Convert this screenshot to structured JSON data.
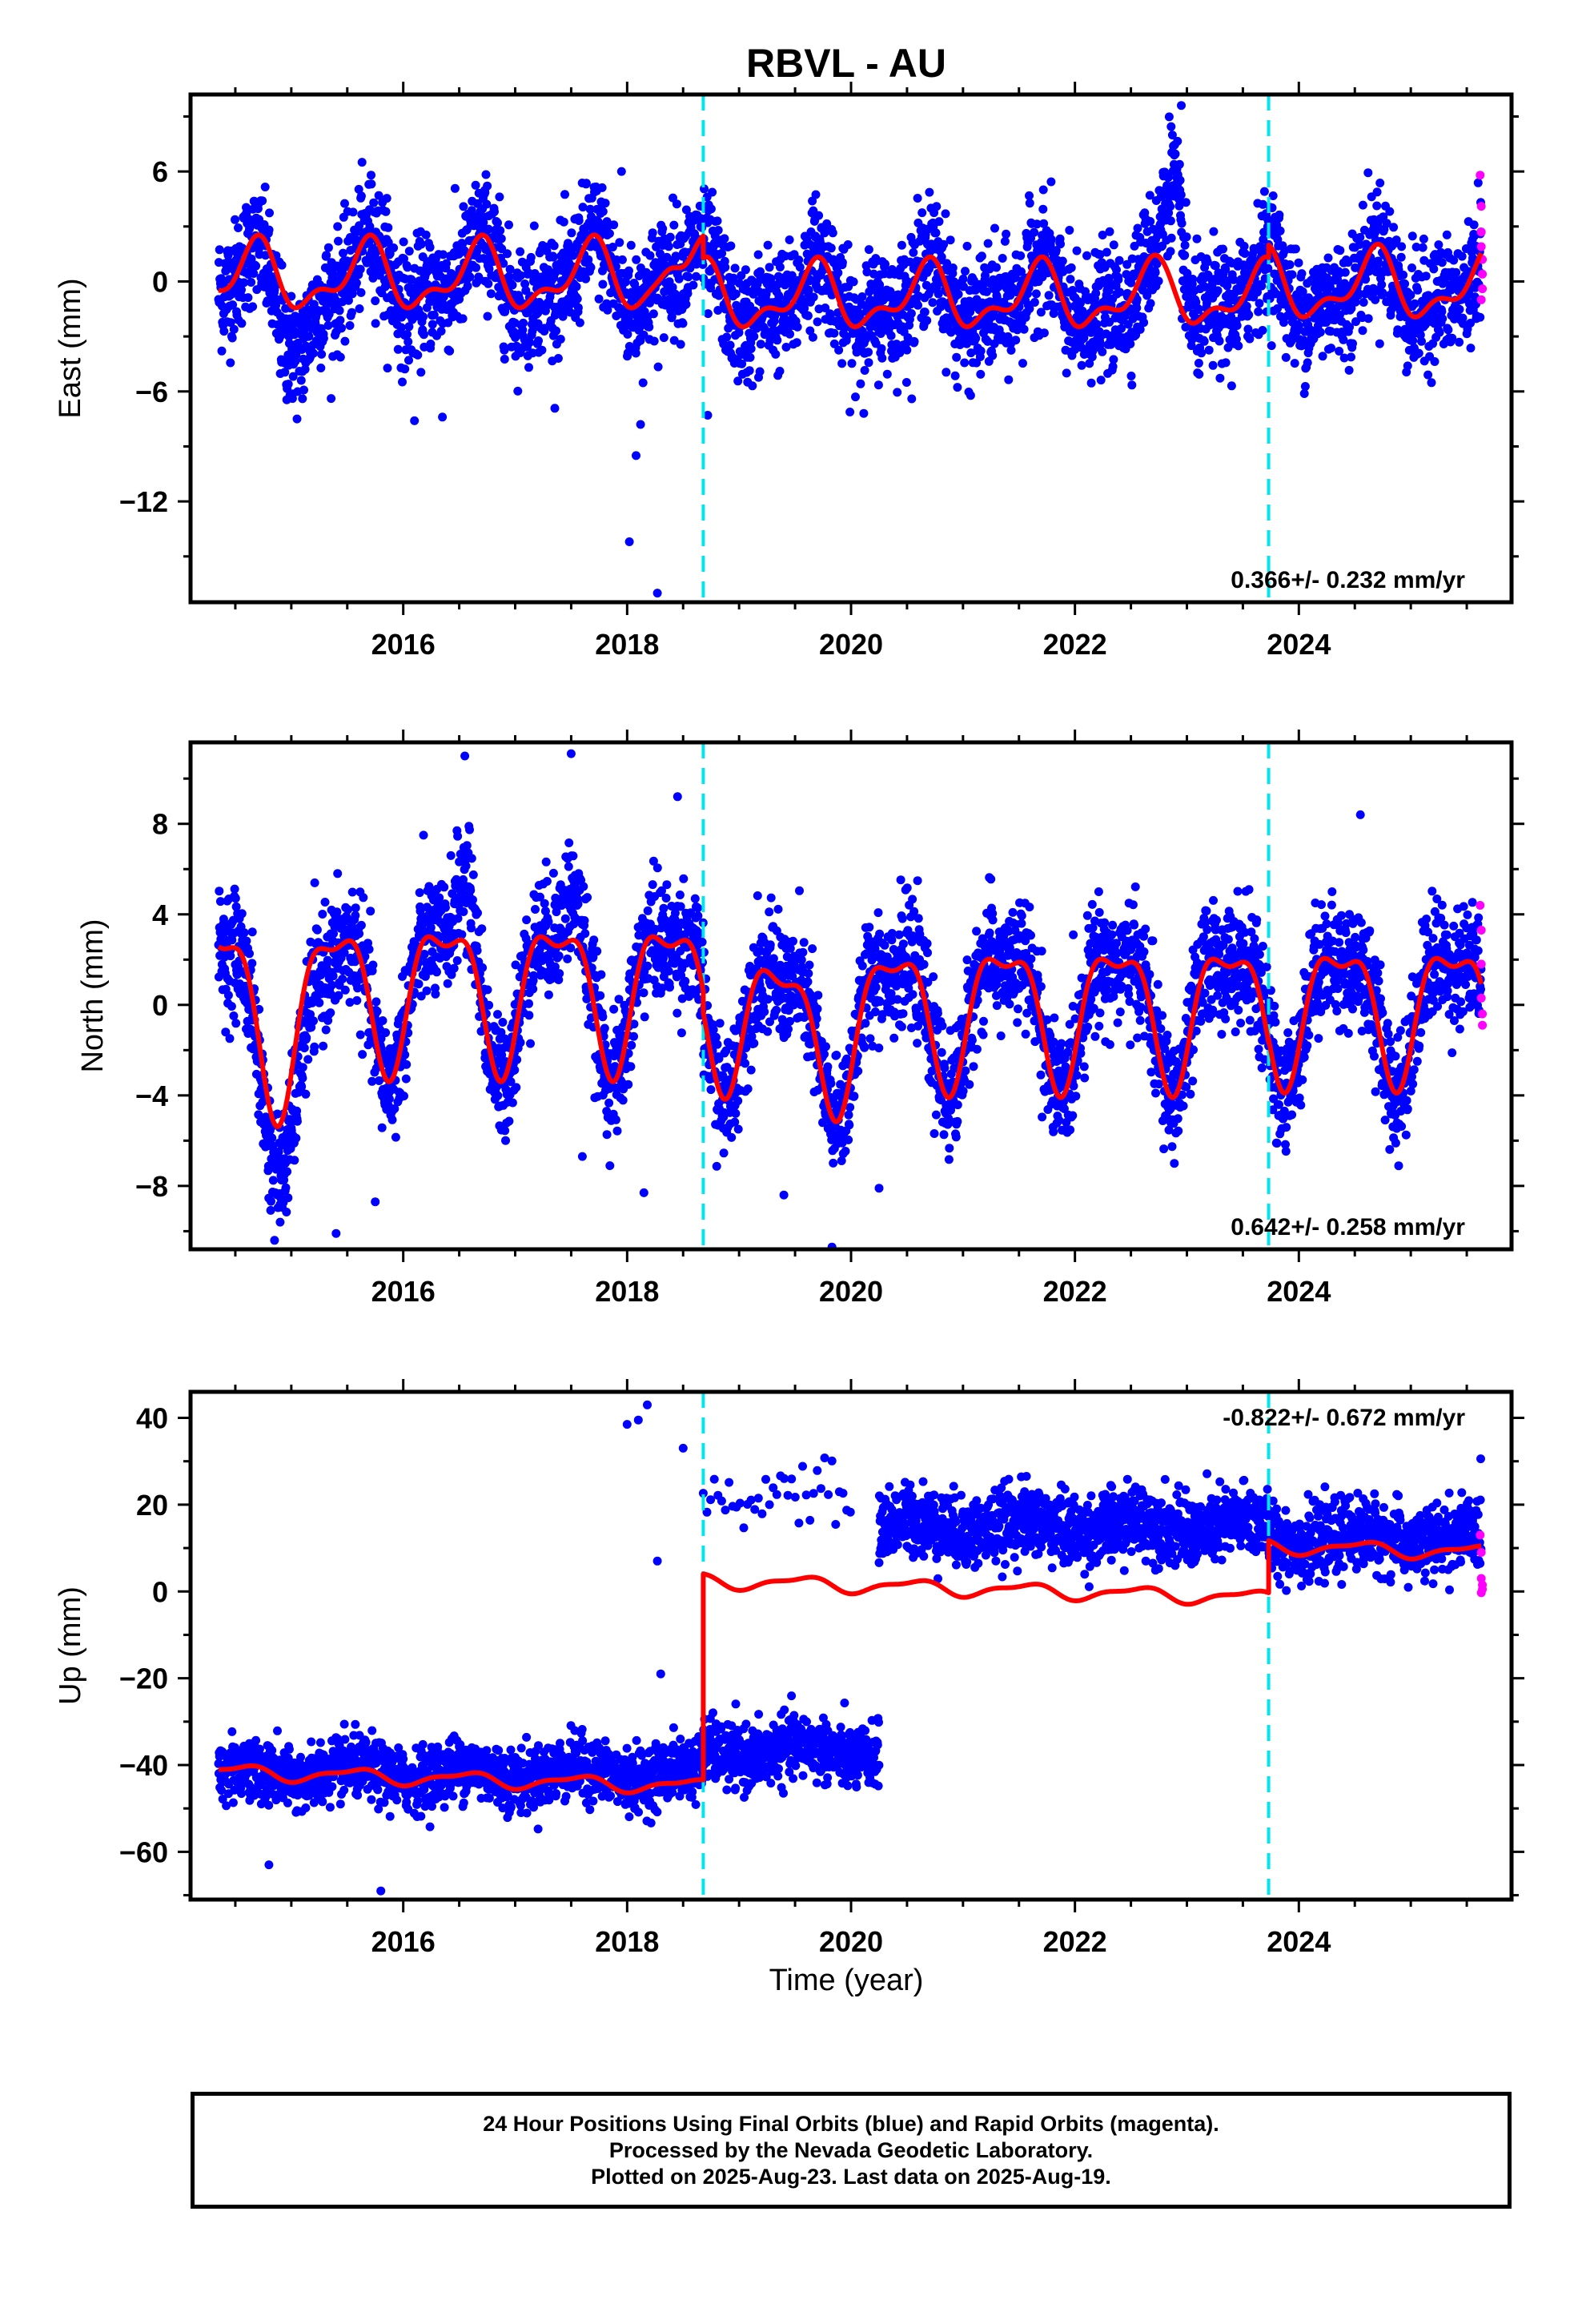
{
  "title": "RBVL - AU",
  "x_axis_label": "Time (year)",
  "colors": {
    "final": "#0000ff",
    "rapid": "#ff00ff",
    "model": "#ff0000",
    "offset": "#00e5ee"
  },
  "footer": {
    "line1": "24 Hour Positions Using Final Orbits (blue) and Rapid Orbits (magenta).",
    "line2": "Processed by the Nevada Geodetic Laboratory.",
    "line3": "Plotted on 2025-Aug-23. Last data on 2025-Aug-19."
  },
  "chart_data": [
    {
      "type": "scatter",
      "component": "East",
      "ylabel": "East (mm)",
      "xlim": [
        2014.1,
        2025.9
      ],
      "ylim": [
        -17.5,
        10.2
      ],
      "yticks": [
        6,
        0,
        -6,
        -12
      ],
      "xticks": [
        2016,
        2018,
        2020,
        2022,
        2024
      ],
      "grid": false,
      "rate_label": "0.366+/- 0.232 mm/yr",
      "rate_position": "bottom-right",
      "offsets": [
        2018.68,
        2023.73
      ],
      "data_start": 2014.35,
      "data_end": 2025.63,
      "model": {
        "name": "model",
        "segments": [
          {
            "start": 2014.35,
            "end": 2018.68,
            "level": 0.2,
            "amp1": 1.6,
            "ph1": 0.42,
            "amp2": 0.8,
            "ph2": 0.1
          },
          {
            "start": 2018.68,
            "end": 2023.73,
            "level": -0.9,
            "amp1": 1.5,
            "ph1": 0.42,
            "amp2": 0.8,
            "ph2": 0.1
          },
          {
            "start": 2023.73,
            "end": 2025.63,
            "level": -0.3,
            "amp1": 1.6,
            "ph1": 0.42,
            "amp2": 0.8,
            "ph2": 0.1
          }
        ],
        "features": [
          {
            "center": 2018.4,
            "width": 0.12,
            "amp": 1.2
          },
          {
            "center": 2022.9,
            "width": 0.15,
            "amp": 0.5
          }
        ]
      },
      "scatter_features": [
        {
          "center": 2022.88,
          "width": 0.1,
          "amp": 6.0
        },
        {
          "center": 2015.0,
          "width": 0.25,
          "amp": -2.5
        }
      ],
      "noise_sd": 1.6,
      "outliers": [
        {
          "x": 2018.02,
          "y": -14.2
        },
        {
          "x": 2018.27,
          "y": -17.0
        },
        {
          "x": 2018.08,
          "y": -9.5
        },
        {
          "x": 2018.12,
          "y": -7.8
        },
        {
          "x": 2016.1,
          "y": -7.6
        },
        {
          "x": 2016.35,
          "y": -7.4
        },
        {
          "x": 2018.72,
          "y": -7.3
        },
        {
          "x": 2022.95,
          "y": 9.6
        },
        {
          "x": 2015.1,
          "y": -6.4
        },
        {
          "x": 2017.95,
          "y": 6.0
        }
      ],
      "rapid": [
        {
          "x": 2025.62,
          "y": 5.8
        },
        {
          "x": 2025.63,
          "y": 4.1
        },
        {
          "x": 2025.63,
          "y": 2.7
        },
        {
          "x": 2025.63,
          "y": 1.9
        },
        {
          "x": 2025.64,
          "y": 1.2
        },
        {
          "x": 2025.64,
          "y": 0.4
        },
        {
          "x": 2025.64,
          "y": -0.4
        },
        {
          "x": 2025.63,
          "y": -1.0
        }
      ]
    },
    {
      "type": "scatter",
      "component": "North",
      "ylabel": "North (mm)",
      "xlim": [
        2014.1,
        2025.9
      ],
      "ylim": [
        -10.8,
        11.6
      ],
      "yticks": [
        8,
        4,
        0,
        -4,
        -8
      ],
      "xticks": [
        2016,
        2018,
        2020,
        2022,
        2024
      ],
      "grid": false,
      "rate_label": "0.642+/- 0.258 mm/yr",
      "rate_position": "bottom-right",
      "offsets": [
        2018.68,
        2023.73
      ],
      "data_start": 2014.35,
      "data_end": 2025.63,
      "model": {
        "name": "model",
        "segments": [
          {
            "start": 2014.35,
            "end": 2018.68,
            "level": 0.8,
            "amp1": 3.0,
            "ph1": 0.12,
            "amp2": 1.2,
            "ph2": 0.0
          },
          {
            "start": 2018.68,
            "end": 2023.73,
            "level": -0.1,
            "amp1": 2.9,
            "ph1": 0.12,
            "amp2": 1.1,
            "ph2": 0.0
          },
          {
            "start": 2023.73,
            "end": 2025.63,
            "level": 0.0,
            "amp1": 2.8,
            "ph1": 0.12,
            "amp2": 1.1,
            "ph2": 0.0
          }
        ],
        "features": [
          {
            "center": 2014.9,
            "width": 0.3,
            "amp": -2.0
          },
          {
            "center": 2019.7,
            "width": 0.5,
            "amp": -1.2
          }
        ]
      },
      "scatter_features": [
        {
          "center": 2016.55,
          "width": 0.12,
          "amp": 2.5
        },
        {
          "center": 2017.5,
          "width": 0.12,
          "amp": 2.0
        },
        {
          "center": 2015.0,
          "width": 0.3,
          "amp": -2.5
        }
      ],
      "noise_sd": 1.3,
      "outliers": [
        {
          "x": 2014.9,
          "y": -9.6
        },
        {
          "x": 2015.4,
          "y": -10.1
        },
        {
          "x": 2015.75,
          "y": -8.7
        },
        {
          "x": 2017.6,
          "y": -6.7
        },
        {
          "x": 2018.15,
          "y": -8.3
        },
        {
          "x": 2019.4,
          "y": -8.4
        },
        {
          "x": 2019.83,
          "y": -10.7
        },
        {
          "x": 2020.25,
          "y": -8.1
        },
        {
          "x": 2016.55,
          "y": 11.0
        },
        {
          "x": 2017.5,
          "y": 11.1
        },
        {
          "x": 2018.45,
          "y": 9.2
        },
        {
          "x": 2024.55,
          "y": 8.4
        }
      ],
      "rapid": [
        {
          "x": 2025.62,
          "y": 4.4
        },
        {
          "x": 2025.63,
          "y": 3.3
        },
        {
          "x": 2025.63,
          "y": 1.8
        },
        {
          "x": 2025.63,
          "y": 0.3
        },
        {
          "x": 2025.64,
          "y": -0.4
        },
        {
          "x": 2025.64,
          "y": -0.9
        }
      ]
    },
    {
      "type": "scatter",
      "component": "Up",
      "ylabel": "Up (mm)",
      "xlim": [
        2014.1,
        2025.9
      ],
      "ylim": [
        -71,
        46
      ],
      "yticks": [
        40,
        20,
        0,
        -20,
        -40,
        -60
      ],
      "xticks": [
        2016,
        2018,
        2020,
        2022,
        2024
      ],
      "grid": false,
      "rate_label": "-0.822+/- 0.672 mm/yr",
      "rate_position": "top-right",
      "offsets": [
        2018.68,
        2023.73
      ],
      "data_start": 2014.35,
      "data_end": 2025.63,
      "model": {
        "name": "model",
        "segments": [
          {
            "start": 2014.35,
            "end": 2018.68,
            "level": -41.5,
            "amp1": 1.5,
            "ph1": 0.3,
            "amp2": 0.6,
            "ph2": 0.1,
            "trend": -0.8
          },
          {
            "start": 2018.68,
            "end": 2023.73,
            "level": 2.5,
            "amp1": 1.5,
            "ph1": 0.3,
            "amp2": 0.6,
            "ph2": 0.1,
            "trend": -0.8
          },
          {
            "start": 2023.73,
            "end": 2025.63,
            "level": 10.5,
            "amp1": 1.5,
            "ph1": 0.3,
            "amp2": 0.6,
            "ph2": 0.1,
            "trend": -0.8
          }
        ],
        "features": []
      },
      "noise_sd": 3.5,
      "scatter_segments": [
        {
          "start": 2014.35,
          "end": 2018.68,
          "level": -42,
          "sd": 3.5
        },
        {
          "start": 2018.68,
          "end": 2020.25,
          "level": -37,
          "sd": 3.5
        },
        {
          "start": 2018.68,
          "end": 2020.0,
          "level": 22,
          "sd": 3.5,
          "sparse": true
        },
        {
          "start": 2020.25,
          "end": 2023.73,
          "level": 15,
          "sd": 4.0
        },
        {
          "start": 2023.73,
          "end": 2025.63,
          "level": 12,
          "sd": 4.0
        }
      ],
      "outliers": [
        {
          "x": 2018.0,
          "y": 38.5
        },
        {
          "x": 2018.1,
          "y": 39.5
        },
        {
          "x": 2018.18,
          "y": 43.0
        },
        {
          "x": 2018.27,
          "y": 7.0
        },
        {
          "x": 2018.5,
          "y": 33.0
        },
        {
          "x": 2015.8,
          "y": -69.0
        },
        {
          "x": 2014.8,
          "y": -63.0
        },
        {
          "x": 2018.3,
          "y": -19.0
        }
      ],
      "rapid": [
        {
          "x": 2025.62,
          "y": 13.0
        },
        {
          "x": 2025.63,
          "y": 9.0
        },
        {
          "x": 2025.63,
          "y": 3.0
        },
        {
          "x": 2025.64,
          "y": 1.5
        },
        {
          "x": 2025.64,
          "y": 0.5
        },
        {
          "x": 2025.63,
          "y": -0.3
        }
      ]
    }
  ]
}
